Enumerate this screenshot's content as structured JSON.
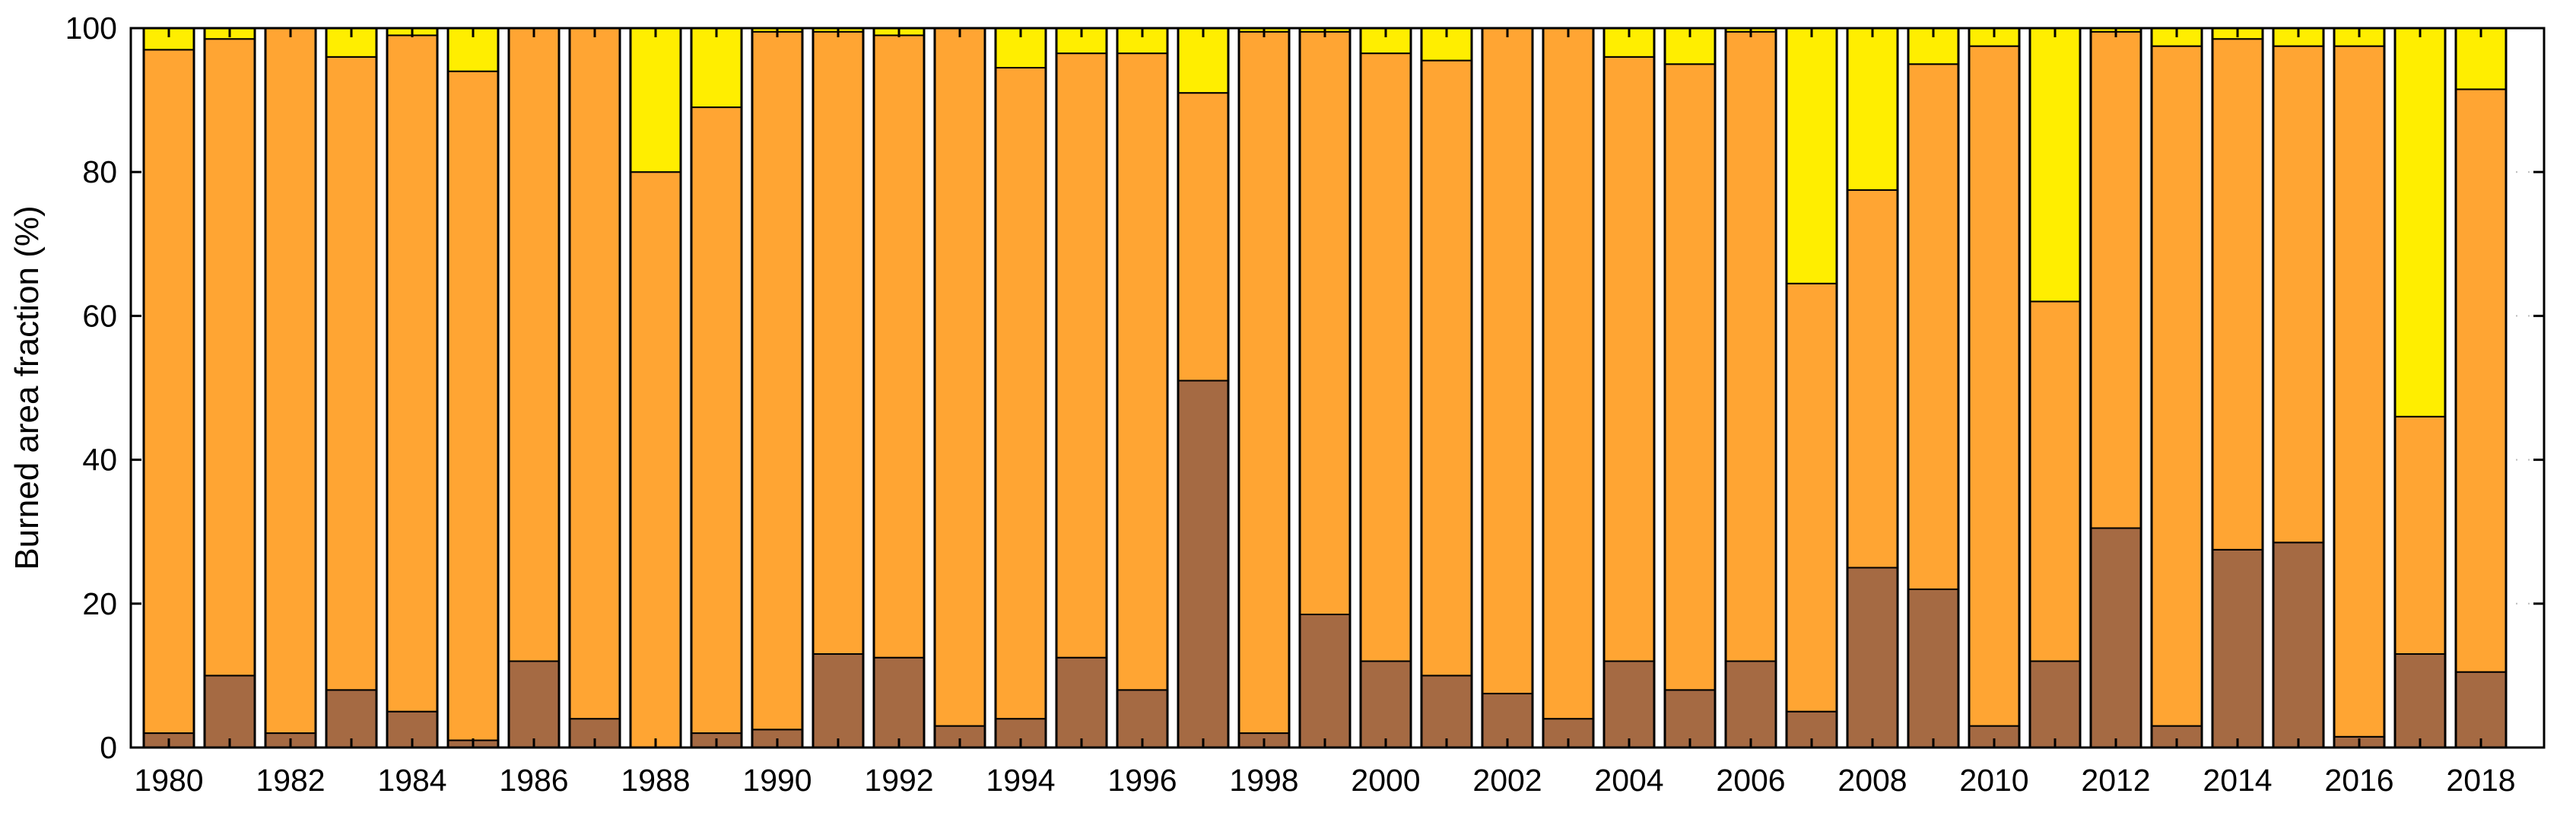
{
  "chart_data": {
    "type": "bar",
    "stacked": true,
    "ylabel": "Burned area fraction (%)",
    "ylim": [
      0,
      100
    ],
    "yticks": [
      0,
      20,
      40,
      60,
      80,
      100
    ],
    "grid": true,
    "colors": {
      "bottom": "#A56A43",
      "middle": "#FFA533",
      "top": "#FFEE00",
      "outline": "#000000",
      "grid": "#BBBBBB"
    },
    "categories": [
      "1980",
      "1981",
      "1982",
      "1983",
      "1984",
      "1985",
      "1986",
      "1987",
      "1988",
      "1989",
      "1990",
      "1991",
      "1992",
      "1993",
      "1994",
      "1995",
      "1996",
      "1997",
      "1998",
      "1999",
      "2000",
      "2001",
      "2002",
      "2003",
      "2004",
      "2005",
      "2006",
      "2007",
      "2008",
      "2009",
      "2010",
      "2011",
      "2012",
      "2013",
      "2014",
      "2015",
      "2016",
      "2017",
      "2018"
    ],
    "xtick_labels": [
      "1980",
      "1982",
      "1984",
      "1986",
      "1988",
      "1990",
      "1992",
      "1994",
      "1996",
      "1998",
      "2000",
      "2002",
      "2004",
      "2006",
      "2008",
      "2010",
      "2012",
      "2014",
      "2016",
      "2018"
    ],
    "series": [
      {
        "role": "bottom",
        "values": [
          2,
          10,
          2,
          8,
          5,
          1,
          12,
          4,
          0,
          2,
          2.5,
          13,
          12.5,
          3,
          4,
          12.5,
          8,
          51,
          2,
          18.5,
          12,
          10,
          7.5,
          4,
          12,
          8,
          12,
          5,
          25,
          22,
          3,
          12,
          30.5,
          3,
          27.5,
          28.5,
          1.5,
          13,
          10.5
        ]
      },
      {
        "role": "middle",
        "values": [
          95,
          88.5,
          98,
          88,
          94,
          93,
          88,
          96,
          80,
          87,
          97,
          86.5,
          86.5,
          97,
          90.5,
          84,
          88.5,
          40,
          97.5,
          81,
          84.5,
          85.5,
          92.5,
          96,
          84,
          87,
          87.5,
          59.5,
          52.5,
          73,
          94.5,
          50,
          69,
          94.5,
          71,
          69,
          96,
          33,
          81
        ]
      },
      {
        "role": "top",
        "values": [
          3,
          1.5,
          0,
          4,
          1,
          6,
          0,
          0,
          20,
          11,
          0.5,
          0.5,
          1,
          0,
          5.5,
          3.5,
          3.5,
          9,
          0.5,
          0.5,
          3.5,
          4.5,
          0,
          0,
          4,
          5,
          0.5,
          35.5,
          22.5,
          5,
          2.5,
          38,
          0.5,
          2.5,
          1.5,
          2.5,
          2.5,
          54,
          8.5
        ]
      }
    ]
  }
}
